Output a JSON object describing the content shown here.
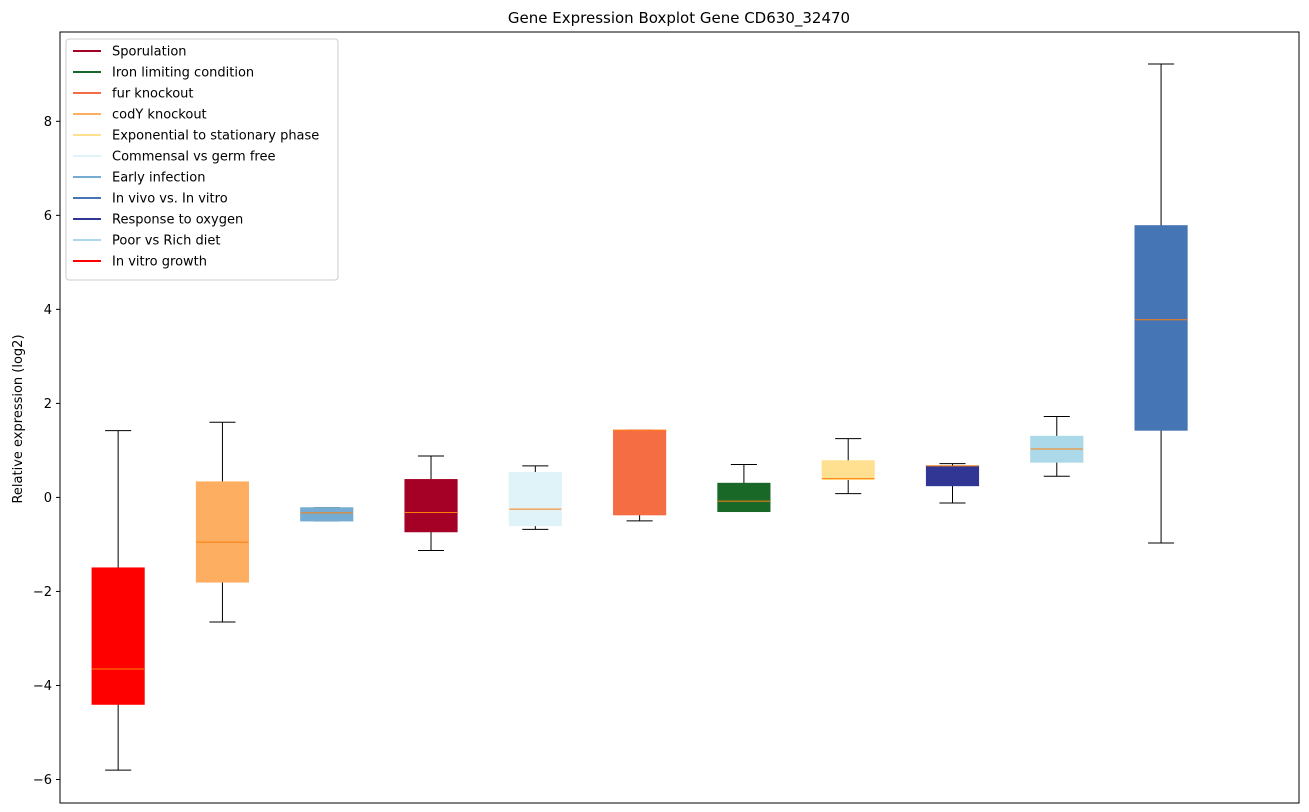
{
  "chart_data": {
    "type": "boxplot",
    "title": "Gene Expression Boxplot Gene CD630_32470",
    "xlabel": "",
    "ylabel": "Relative expression (log2)",
    "ylim": [
      -6.5,
      9.9
    ],
    "yticks": [
      -6,
      -4,
      -2,
      0,
      2,
      4,
      6,
      8
    ],
    "ytick_labels": [
      "−6",
      "−4",
      "−2",
      "0",
      "2",
      "4",
      "6",
      "8"
    ],
    "grid": false,
    "legend_position": "top-left",
    "median_color": "#ff7f0e",
    "legend": [
      {
        "label": "Sporulation",
        "color": "#a50026"
      },
      {
        "label": "Iron limiting condition",
        "color": "#1a6828"
      },
      {
        "label": "fur knockout",
        "color": "#f46d43"
      },
      {
        "label": "codY knockout",
        "color": "#fdae61"
      },
      {
        "label": "Exponential to stationary phase",
        "color": "#fee090"
      },
      {
        "label": "Commensal vs germ free",
        "color": "#e0f3f8"
      },
      {
        "label": "Early infection",
        "color": "#74add1"
      },
      {
        "label": "In vivo vs. In vitro",
        "color": "#4575b4"
      },
      {
        "label": "Response to oxygen",
        "color": "#313695"
      },
      {
        "label": "Poor vs Rich diet",
        "color": "#abd9e9"
      },
      {
        "label": "In vitro growth",
        "color": "#ff0000"
      }
    ],
    "boxes": [
      {
        "group": "In vitro growth",
        "color": "#ff0000",
        "whislo": -5.8,
        "q1": -4.4,
        "median": -3.65,
        "q3": -1.5,
        "whishi": 1.42
      },
      {
        "group": "codY knockout",
        "color": "#fdae61",
        "whislo": -2.65,
        "q1": -1.8,
        "median": -0.95,
        "q3": 0.33,
        "whishi": 1.6
      },
      {
        "group": "Early infection",
        "color": "#74add1",
        "whislo": -0.5,
        "q1": -0.5,
        "median": -0.33,
        "q3": -0.22,
        "whishi": -0.22
      },
      {
        "group": "Sporulation",
        "color": "#a50026",
        "whislo": -1.13,
        "q1": -0.73,
        "median": -0.32,
        "q3": 0.38,
        "whishi": 0.88
      },
      {
        "group": "Commensal vs germ free",
        "color": "#e0f3f8",
        "whislo": -0.68,
        "q1": -0.6,
        "median": -0.25,
        "q3": 0.53,
        "whishi": 0.67
      },
      {
        "group": "fur knockout",
        "color": "#f46d43",
        "whislo": -0.5,
        "q1": -0.37,
        "median": 1.43,
        "q3": 1.43,
        "whishi": 1.43
      },
      {
        "group": "Iron limiting condition",
        "color": "#1a6828",
        "whislo": -0.3,
        "q1": -0.3,
        "median": -0.08,
        "q3": 0.3,
        "whishi": 0.7
      },
      {
        "group": "Exponential to stationary phase",
        "color": "#fee090",
        "whislo": 0.08,
        "q1": 0.38,
        "median": 0.4,
        "q3": 0.78,
        "whishi": 1.25
      },
      {
        "group": "Response to oxygen",
        "color": "#313695",
        "whislo": -0.12,
        "q1": 0.25,
        "median": 0.67,
        "q3": 0.67,
        "whishi": 0.72
      },
      {
        "group": "Poor vs Rich diet",
        "color": "#abd9e9",
        "whislo": 0.45,
        "q1": 0.75,
        "median": 1.03,
        "q3": 1.3,
        "whishi": 1.72
      },
      {
        "group": "In vivo vs. In vitro",
        "color": "#4575b4",
        "whislo": -0.97,
        "q1": 1.43,
        "median": 3.78,
        "q3": 5.78,
        "whishi": 9.22
      }
    ]
  }
}
